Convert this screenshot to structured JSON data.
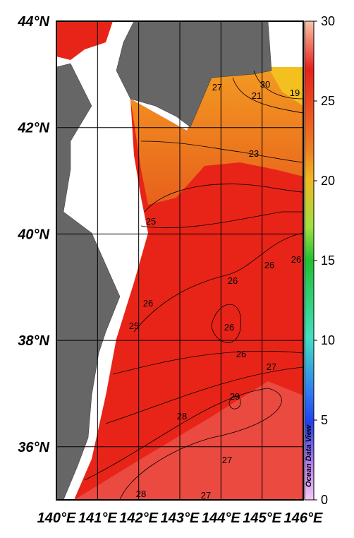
{
  "map": {
    "lon_labels": [
      "140°E",
      "141°E",
      "142°E",
      "143°E",
      "144°E",
      "145°E",
      "146°E"
    ],
    "lat_labels": [
      "44°N",
      "42°N",
      "40°N",
      "38°N",
      "36°N"
    ],
    "colorbar": {
      "lim": [
        0,
        30
      ],
      "ticks": [
        0,
        5,
        10,
        15,
        20,
        25,
        30
      ]
    },
    "contour_labels": [
      "27",
      "30",
      "21",
      "19",
      "23",
      "25",
      "26",
      "26",
      "26",
      "26",
      "25",
      "26",
      "26",
      "27",
      "29",
      "28",
      "27",
      "28",
      "27"
    ],
    "watermark": "Ocean Data View"
  }
}
